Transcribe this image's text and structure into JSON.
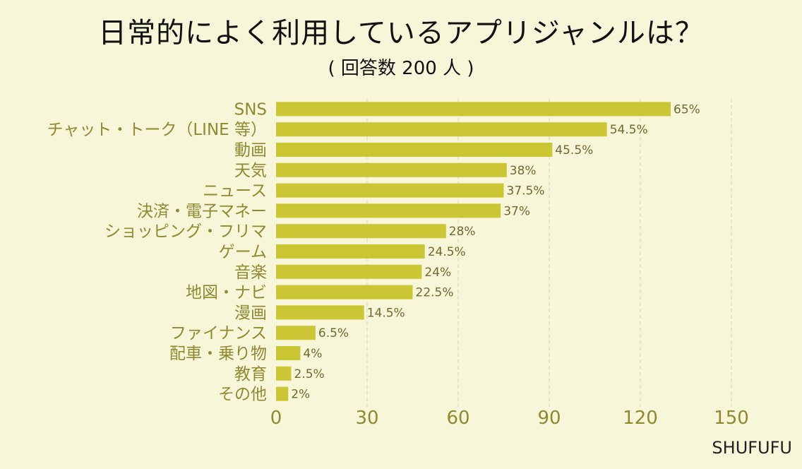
{
  "title": "日常的によく利用しているアプリジャンルは？",
  "subtitle": "( 回答数 200 人 )",
  "brand": "SHUFUFU",
  "colors": {
    "background": "#f7f6d8",
    "bar": "#cbc634",
    "label": "#8f8a32",
    "value": "#6f6a2e",
    "grid": "#d4d1b4"
  },
  "chart_data": {
    "type": "bar",
    "orientation": "horizontal",
    "categories": [
      "SNS",
      "チャット・トーク（LINE 等）",
      "動画",
      "天気",
      "ニュース",
      "決済・電子マネー",
      "ショッピング・フリマ",
      "ゲーム",
      "音楽",
      "地図・ナビ",
      "漫画",
      "ファイナンス",
      "配車・乗り物",
      "教育",
      "その他"
    ],
    "values": [
      130,
      109,
      91,
      76,
      75,
      74,
      56,
      49,
      48,
      45,
      29,
      13,
      8,
      5,
      4
    ],
    "data_labels": [
      "65%",
      "54.5%",
      "45.5%",
      "38%",
      "37.5%",
      "37%",
      "28%",
      "24.5%",
      "24%",
      "22.5%",
      "14.5%",
      "6.5%",
      "4%",
      "2.5%",
      "2%"
    ],
    "xlim": [
      0,
      150
    ],
    "xticks": [
      "0",
      "30",
      "60",
      "90",
      "120",
      "150"
    ],
    "grid": "vertical dashed"
  }
}
